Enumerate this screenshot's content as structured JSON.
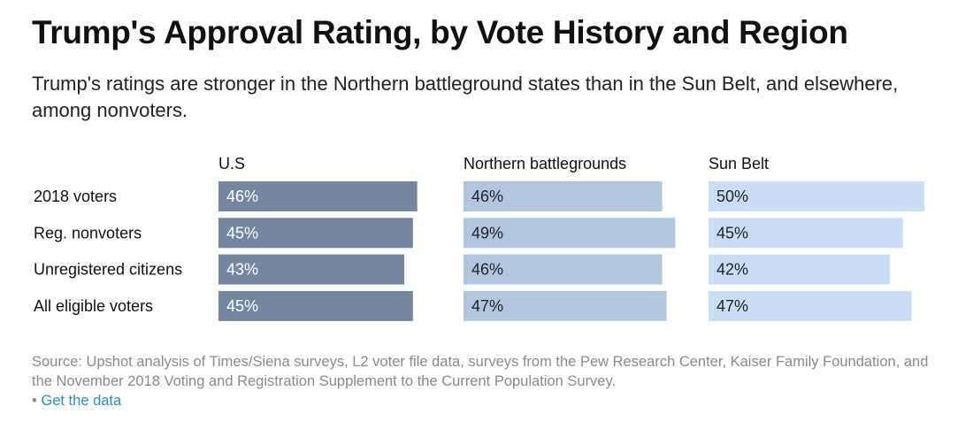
{
  "title": "Trump's Approval Rating, by Vote History and Region",
  "subtitle": "Trump's ratings are stronger in the Northern battleground states than in the Sun Belt, and elsewhere, among nonvoters.",
  "source": "Source: Upshot analysis of Times/Siena surveys, L2 voter file data, surveys from the Pew Research Center, Kaiser Family Foundation, and the November 2018 Voting and Registration Supplement to the Current Population Survey.",
  "link": {
    "bullet": "•",
    "label": "Get the data",
    "color": "#2a8fbd"
  },
  "chart_data": {
    "type": "bar",
    "orientation": "horizontal",
    "layout": "small-multiples",
    "categories": [
      "2018 voters",
      "Reg. nonvoters",
      "Unregistered citizens",
      "All eligible voters"
    ],
    "value_format": "percent",
    "series": [
      {
        "name": "U.S",
        "values": [
          46,
          45,
          43,
          45
        ],
        "color": "#73879f",
        "label_color": "#ffffff"
      },
      {
        "name": "Northern battlegrounds",
        "values": [
          46,
          49,
          46,
          47
        ],
        "color": "#b1c7e0",
        "label_color": "#222222"
      },
      {
        "name": "Sun Belt",
        "values": [
          50,
          45,
          42,
          47
        ],
        "color": "#c9def5",
        "label_color": "#222222"
      }
    ],
    "xlim": [
      0,
      52
    ]
  }
}
